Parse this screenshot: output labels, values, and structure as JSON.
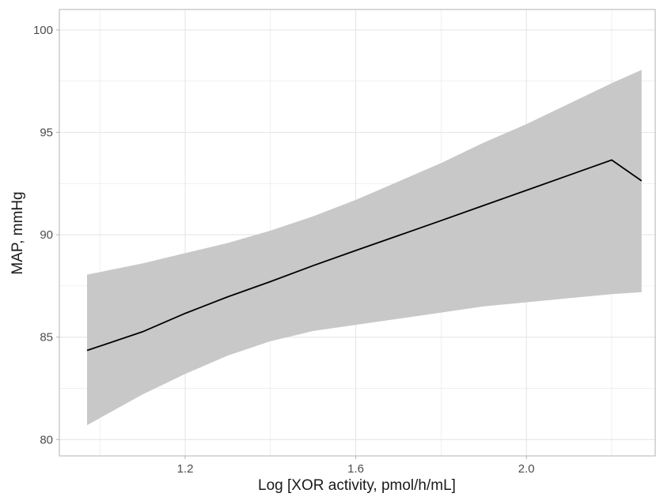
{
  "chart_data": {
    "type": "line",
    "title": "",
    "xlabel": "Log [XOR activity, pmol/h/mL]",
    "ylabel": "MAP, mmHg",
    "xlim": [
      0.905,
      2.302
    ],
    "ylim": [
      79.2,
      101.0
    ],
    "x_ticks": [
      1.2,
      1.6,
      2.0
    ],
    "x_tick_labels": [
      "1.2",
      "1.6",
      "2.0"
    ],
    "y_ticks": [
      80,
      85,
      90,
      95,
      100
    ],
    "y_tick_labels": [
      "80",
      "85",
      "90",
      "95",
      "100"
    ],
    "x_minor_ticks": [
      1.0,
      1.4,
      1.8,
      2.2
    ],
    "y_minor_ticks": [
      82.5,
      87.5,
      92.5,
      97.5
    ],
    "grid": true,
    "legend": "none",
    "colors": {
      "line": "#000000",
      "ribbon": "#c8c8c8",
      "grid": "#e6e6e6",
      "panel_border": "#b3b3b3"
    },
    "series": [
      {
        "style": "fitted-line-with-confidence-band",
        "x": [
          0.97,
          1.1,
          1.2,
          1.3,
          1.4,
          1.5,
          1.6,
          1.7,
          1.8,
          1.9,
          2.0,
          2.1,
          2.2,
          2.27
        ],
        "y": [
          84.35,
          85.26,
          86.16,
          86.97,
          87.71,
          88.49,
          89.23,
          89.96,
          90.69,
          91.43,
          92.17,
          92.91,
          93.65,
          92.63
        ],
        "lower": [
          80.7,
          82.2,
          83.2,
          84.1,
          84.8,
          85.3,
          85.6,
          85.9,
          86.2,
          86.5,
          86.7,
          86.9,
          87.1,
          87.2
        ],
        "upper": [
          88.05,
          88.6,
          89.1,
          89.6,
          90.2,
          90.9,
          91.7,
          92.6,
          93.5,
          94.5,
          95.4,
          96.4,
          97.4,
          98.05
        ]
      }
    ]
  }
}
